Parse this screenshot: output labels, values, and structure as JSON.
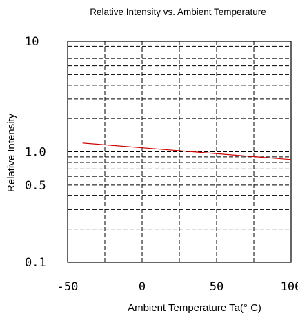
{
  "chart_data": {
    "type": "line",
    "title": "Relative Intensity vs. Ambient Temperature",
    "xlabel": "Ambient Temperature Ta(° C)",
    "ylabel": "Relative Intensity",
    "xlim": [
      -50,
      100
    ],
    "ylim": [
      0.1,
      10
    ],
    "y_scale": "log",
    "grid": true,
    "x_ticks": [
      -50,
      0,
      50,
      100
    ],
    "x_tick_labels": [
      "-50",
      "0",
      "50",
      "100"
    ],
    "y_tick_labels": [
      {
        "value": 10,
        "label": "10"
      },
      {
        "value": 1.0,
        "label": "1.0"
      },
      {
        "value": 0.5,
        "label": "0.5"
      },
      {
        "value": 0.1,
        "label": "0.1"
      }
    ],
    "series": [
      {
        "color": "#cc0000",
        "x": [
          -40,
          100
        ],
        "y": [
          1.2,
          0.85
        ]
      }
    ]
  }
}
